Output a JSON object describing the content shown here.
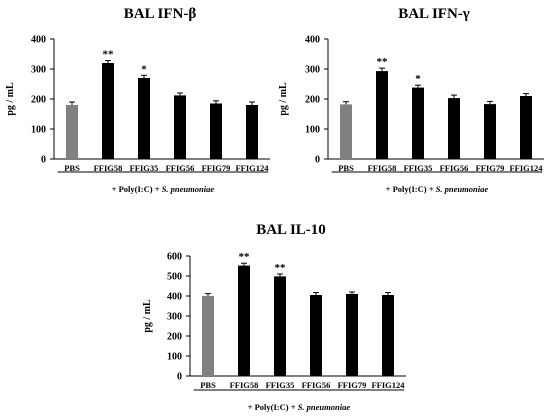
{
  "chart_data": [
    {
      "type": "bar",
      "title": "BAL IFN-β",
      "ylabel": "pg / mL",
      "ylim": [
        0,
        400
      ],
      "yticks": [
        0,
        100,
        200,
        300,
        400
      ],
      "categories": [
        "PBS",
        "FFIG58",
        "FFIG35",
        "FFIG56",
        "FFIG79",
        "FFIG124"
      ],
      "values": [
        180,
        320,
        270,
        212,
        185,
        180
      ],
      "errors": [
        10,
        8,
        9,
        8,
        9,
        10
      ],
      "significance": [
        "",
        "**",
        "*",
        "",
        "",
        ""
      ],
      "treatment_label": "+ Poly(I:C) + S. pneumoniae",
      "colors": [
        "#808080",
        "#000000",
        "#000000",
        "#000000",
        "#000000",
        "#000000"
      ],
      "grid": false
    },
    {
      "type": "bar",
      "title": "BAL IFN-γ",
      "ylabel": "pg / mL",
      "ylim": [
        0,
        400
      ],
      "yticks": [
        0,
        100,
        200,
        300,
        400
      ],
      "categories": [
        "PBS",
        "FFIG58",
        "FFIG35",
        "FFIG56",
        "FFIG79",
        "FFIG124"
      ],
      "values": [
        182,
        293,
        238,
        203,
        183,
        210
      ],
      "errors": [
        9,
        10,
        8,
        10,
        9,
        8
      ],
      "significance": [
        "",
        "**",
        "*",
        "",
        "",
        ""
      ],
      "treatment_label": "+ Poly(I:C) + S. pneumoniae",
      "colors": [
        "#808080",
        "#000000",
        "#000000",
        "#000000",
        "#000000",
        "#000000"
      ],
      "grid": false
    },
    {
      "type": "bar",
      "title": "BAL IL-10",
      "ylabel": "pg / mL",
      "ylim": [
        0,
        600
      ],
      "yticks": [
        0,
        100,
        200,
        300,
        400,
        500,
        600
      ],
      "categories": [
        "PBS",
        "FFIG58",
        "FFIG35",
        "FFIG56",
        "FFIG79",
        "FFIG124"
      ],
      "values": [
        400,
        552,
        498,
        405,
        410,
        405
      ],
      "errors": [
        12,
        12,
        12,
        12,
        10,
        12
      ],
      "significance": [
        "",
        "**",
        "**",
        "",
        "",
        ""
      ],
      "treatment_label": "+ Poly(I:C) + S. pneumoniae",
      "colors": [
        "#808080",
        "#000000",
        "#000000",
        "#000000",
        "#000000",
        "#000000"
      ],
      "grid": false
    }
  ]
}
